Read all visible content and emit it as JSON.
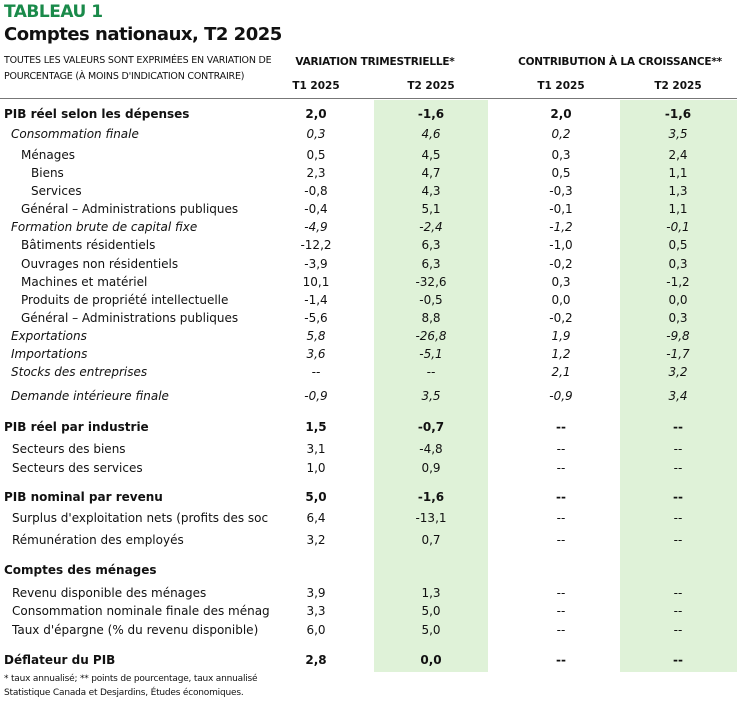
{
  "kicker": "TABLEAU 1",
  "title": "Comptes nationaux, T2 2025",
  "note": "TOUTES LES VALEURS SONT EXPRIMÉES EN VARIATION DE POURCENTAGE (À MOINS D'INDICATION CONTRAIRE)",
  "groups": [
    "VARIATION TRIMESTRIELLE*",
    "CONTRIBUTION À LA CROISSANCE**"
  ],
  "columns": [
    "T1 2025",
    "T2 2025",
    "T1 2025",
    "T2 2025"
  ],
  "highlight_color": "#dff2d8",
  "rows": [
    {
      "label": "PIB réel selon les dépenses",
      "level": "l0",
      "values": [
        "2,0",
        "-1,6",
        "2,0",
        "-1,6"
      ]
    },
    {
      "label": "Consommation finale",
      "level": "l1",
      "values": [
        "0,3",
        "4,6",
        "0,2",
        "3,5"
      ]
    },
    {
      "label": "Ménages",
      "level": "l2",
      "values": [
        "0,5",
        "4,5",
        "0,3",
        "2,4"
      ]
    },
    {
      "label": "Biens",
      "level": "l3",
      "values": [
        "2,3",
        "4,7",
        "0,5",
        "1,1"
      ]
    },
    {
      "label": "Services",
      "level": "l3",
      "values": [
        "-0,8",
        "4,3",
        "-0,3",
        "1,3"
      ]
    },
    {
      "label": "Général – Administrations publiques",
      "level": "l2",
      "values": [
        "-0,4",
        "5,1",
        "-0,1",
        "1,1"
      ]
    },
    {
      "label": "Formation brute de capital fixe",
      "level": "l1",
      "values": [
        "-4,9",
        "-2,4",
        "-1,2",
        "-0,1"
      ]
    },
    {
      "label": "Bâtiments résidentiels",
      "level": "l2",
      "values": [
        "-12,2",
        "6,3",
        "-1,0",
        "0,5"
      ]
    },
    {
      "label": "Ouvrages non résidentiels",
      "level": "l2",
      "values": [
        "-3,9",
        "6,3",
        "-0,2",
        "0,3"
      ]
    },
    {
      "label": "Machines et matériel",
      "level": "l2",
      "values": [
        "10,1",
        "-32,6",
        "0,3",
        "-1,2"
      ]
    },
    {
      "label": "Produits de propriété intellectuelle",
      "level": "l2",
      "values": [
        "-1,4",
        "-0,5",
        "0,0",
        "0,0"
      ]
    },
    {
      "label": "Général – Administrations publiques",
      "level": "l2",
      "values": [
        "-5,6",
        "8,8",
        "-0,2",
        "0,3"
      ]
    },
    {
      "label": "Exportations",
      "level": "l1",
      "values": [
        "5,8",
        "-26,8",
        "1,9",
        "-9,8"
      ]
    },
    {
      "label": "Importations",
      "level": "l1",
      "values": [
        "3,6",
        "-5,1",
        "1,2",
        "-1,7"
      ]
    },
    {
      "label": "Stocks des entreprises",
      "level": "l1",
      "values": [
        "--",
        "--",
        "2,1",
        "3,2"
      ]
    },
    {
      "label": "Demande intérieure finale",
      "level": "l1",
      "values": [
        "-0,9",
        "3,5",
        "-0,9",
        "3,4"
      ]
    },
    {
      "label": "PIB réel par industrie",
      "level": "l0",
      "values": [
        "1,5",
        "-0,7",
        "--",
        "--"
      ]
    },
    {
      "label": "Secteurs des biens",
      "level": "s1",
      "values": [
        "3,1",
        "-4,8",
        "--",
        "--"
      ]
    },
    {
      "label": "Secteurs des services",
      "level": "s1",
      "values": [
        "1,0",
        "0,9",
        "--",
        "--"
      ]
    },
    {
      "label": "PIB nominal par revenu",
      "level": "l0",
      "values": [
        "5,0",
        "-1,6",
        "--",
        "--"
      ]
    },
    {
      "label": "Surplus d'exploitation nets (profits des soc",
      "level": "s1",
      "values": [
        "6,4",
        "-13,1",
        "--",
        "--"
      ]
    },
    {
      "label": "Rémunération des employés",
      "level": "s1",
      "values": [
        "3,2",
        "0,7",
        "--",
        "--"
      ]
    },
    {
      "label": "Comptes des ménages",
      "level": "l0",
      "values": [
        "",
        "",
        "",
        ""
      ]
    },
    {
      "label": "Revenu disponible des ménages",
      "level": "s1",
      "values": [
        "3,9",
        "1,3",
        "--",
        "--"
      ]
    },
    {
      "label": "Consommation nominale finale des ménag",
      "level": "s1",
      "values": [
        "3,3",
        "5,0",
        "--",
        "--"
      ]
    },
    {
      "label": "Taux d'épargne (% du revenu disponible)",
      "level": "s1",
      "values": [
        "6,0",
        "5,0",
        "--",
        "--"
      ]
    },
    {
      "label": "Déflateur du PIB",
      "level": "l0",
      "values": [
        "2,8",
        "0,0",
        "--",
        "--"
      ]
    }
  ],
  "footnote": "* taux annualisé; ** points de pourcentage, taux annualisé",
  "source": "Statistique Canada et Desjardins, Études économiques."
}
